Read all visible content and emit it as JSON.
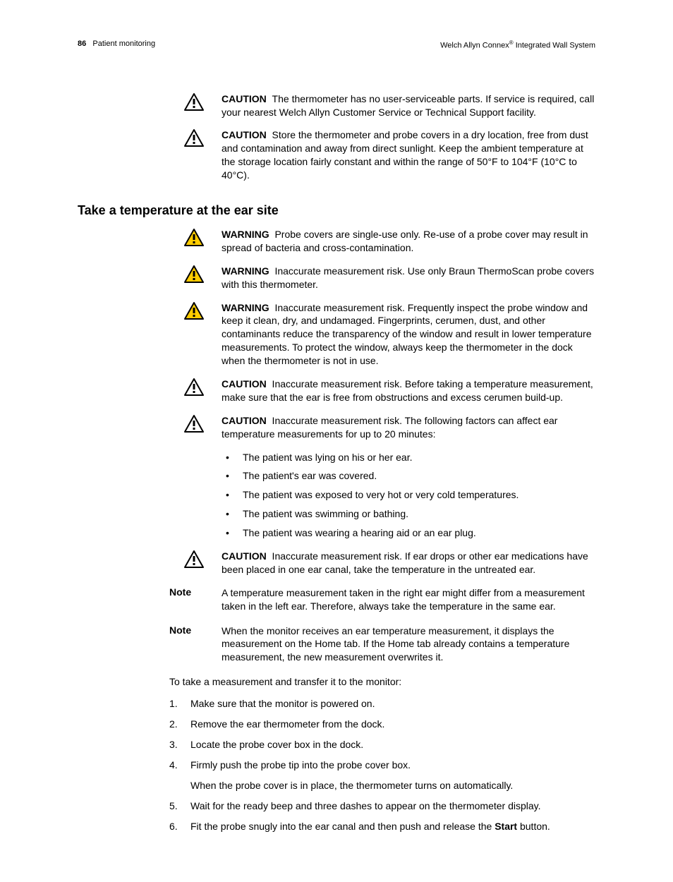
{
  "header": {
    "page_number": "86",
    "section": "Patient monitoring",
    "product": "Welch Allyn Connex",
    "product_suffix": "Integrated Wall System",
    "reg_mark": "®"
  },
  "icons": {
    "caution": {
      "stroke": "#000000",
      "fill": "#ffffff"
    },
    "warning": {
      "stroke": "#000000",
      "fill": "#ffcc00"
    }
  },
  "alerts_top": [
    {
      "type": "caution",
      "label": "CAUTION",
      "text": "The thermometer has no user-serviceable parts. If service is required, call your nearest Welch Allyn Customer Service or Technical Support facility."
    },
    {
      "type": "caution",
      "label": "CAUTION",
      "text": "Store the thermometer and probe covers in a dry location, free from dust and contamination and away from direct sunlight. Keep the ambient temperature at the storage location fairly constant and within the range of 50°F to 104°F (10°C to 40°C)."
    }
  ],
  "section_heading": "Take a temperature at the ear site",
  "alerts_section": [
    {
      "type": "warning",
      "label": "WARNING",
      "text": "Probe covers are single-use only. Re-use of a probe cover may result in spread of bacteria and cross-contamination."
    },
    {
      "type": "warning",
      "label": "WARNING",
      "text": "Inaccurate measurement risk. Use only Braun ThermoScan probe covers with this thermometer."
    },
    {
      "type": "warning",
      "label": "WARNING",
      "text": "Inaccurate measurement risk. Frequently inspect the probe window and keep it clean, dry, and undamaged. Fingerprints, cerumen, dust, and other contaminants reduce the transparency of the window and result in lower temperature measurements. To protect the window, always keep the thermometer in the dock when the thermometer is not in use."
    },
    {
      "type": "caution",
      "label": "CAUTION",
      "text": "Inaccurate measurement risk. Before taking a temperature measurement, make sure that the ear is free from obstructions and excess cerumen build-up."
    },
    {
      "type": "caution",
      "label": "CAUTION",
      "text": "Inaccurate measurement risk. The following factors can affect ear temperature measurements for up to 20 minutes:"
    }
  ],
  "bullets": [
    "The patient was lying on his or her ear.",
    "The patient's ear was covered.",
    "The patient was exposed to very hot or very cold temperatures.",
    "The patient was swimming or bathing.",
    "The patient was wearing a hearing aid or an ear plug."
  ],
  "alert_after_bullets": {
    "type": "caution",
    "label": "CAUTION",
    "text": "Inaccurate measurement risk. If ear drops or other ear medications have been placed in one ear canal, take the temperature in the untreated ear."
  },
  "notes": [
    {
      "label": "Note",
      "text": "A temperature measurement taken in the right ear might differ from a measurement taken in the left ear. Therefore, always take the temperature in the same ear."
    },
    {
      "label": "Note",
      "text": "When the monitor receives an ear temperature measurement, it displays the measurement on the Home tab. If the Home tab already contains a temperature measurement, the new measurement overwrites it."
    }
  ],
  "intro_para": "To take a measurement and transfer it to the monitor:",
  "steps": [
    {
      "text": "Make sure that the monitor is powered on."
    },
    {
      "text": "Remove the ear thermometer from the dock."
    },
    {
      "text": "Locate the probe cover box in the dock."
    },
    {
      "text": "Firmly push the probe tip into the probe cover box.",
      "sub": "When the probe cover is in place, the thermometer turns on automatically."
    },
    {
      "text": "Wait for the ready beep and three dashes to appear on the thermometer display."
    },
    {
      "text_pre": "Fit the probe snugly into the ear canal and then push and release the ",
      "bold": "Start",
      "text_post": " button."
    }
  ]
}
